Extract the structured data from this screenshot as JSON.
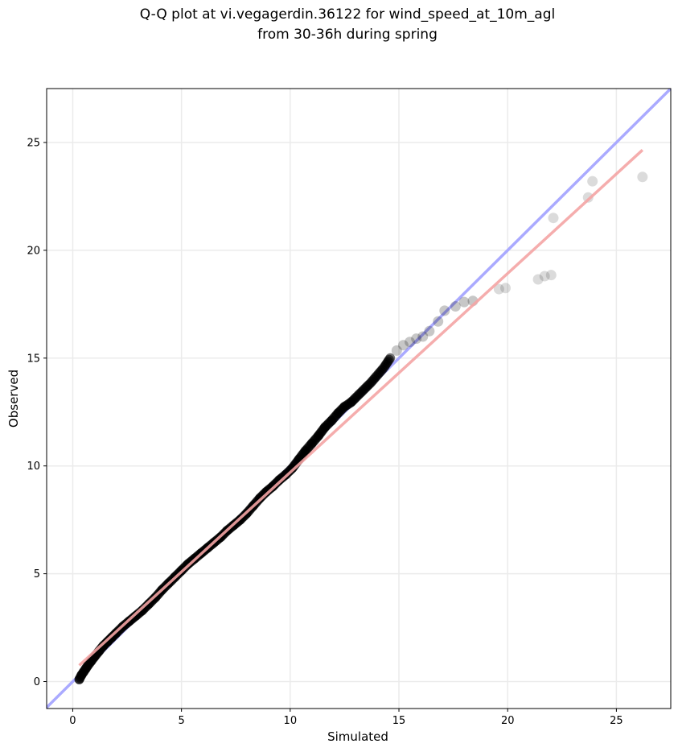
{
  "chart_data": {
    "type": "scatter",
    "title": [
      "Q-Q plot at vi.vegagerdin.36122 for wind_speed_at_10m_agl",
      "from 30-36h during spring"
    ],
    "xlabel": "Simulated",
    "ylabel": "Observed",
    "xlim": [
      -1.2,
      27.5
    ],
    "ylim": [
      -1.25,
      27.5
    ],
    "xticks": [
      0,
      5,
      10,
      15,
      20,
      25
    ],
    "yticks": [
      0,
      5,
      10,
      15,
      20,
      25
    ],
    "grid": true,
    "legend": "none",
    "colors": {
      "points": "#000000",
      "identity_line": "#aaaaff",
      "fit_line": "#f4a4a4",
      "grid": "#ebebeb"
    },
    "identity_line": {
      "slope": 1,
      "intercept": 0
    },
    "fit_line": {
      "x": [
        0.3,
        26.2
      ],
      "y": [
        0.75,
        24.65
      ]
    },
    "series": [
      {
        "x": [
          0.3,
          0.4,
          0.5,
          0.6,
          0.7,
          0.85,
          1.0,
          1.2,
          1.4,
          1.6,
          1.8,
          2.0,
          2.3,
          2.6,
          2.9,
          3.2,
          3.5,
          3.8,
          4.1,
          4.4,
          4.7,
          5.0,
          5.3,
          5.6,
          5.9,
          6.2,
          6.5,
          6.8,
          7.1,
          7.4,
          7.7,
          8.0,
          8.3,
          8.6,
          8.9,
          9.2,
          9.5,
          9.8,
          10.1,
          10.4,
          10.7,
          11.0,
          11.3,
          11.6,
          11.9,
          12.2,
          12.5,
          12.8,
          13.1,
          13.4,
          13.7,
          14.0,
          14.3,
          14.6,
          14.9,
          15.2,
          15.5,
          15.8,
          16.1,
          16.4,
          16.8,
          17.1,
          17.6,
          18.0,
          18.4,
          19.6,
          19.9,
          21.4,
          21.7,
          22.0,
          22.1,
          23.7,
          23.9,
          26.2
        ],
        "y": [
          0.1,
          0.3,
          0.45,
          0.6,
          0.75,
          0.95,
          1.15,
          1.4,
          1.65,
          1.85,
          2.05,
          2.25,
          2.55,
          2.8,
          3.05,
          3.3,
          3.6,
          3.9,
          4.25,
          4.55,
          4.85,
          5.15,
          5.45,
          5.7,
          5.95,
          6.2,
          6.45,
          6.7,
          7.0,
          7.25,
          7.5,
          7.8,
          8.15,
          8.5,
          8.8,
          9.05,
          9.35,
          9.6,
          9.9,
          10.3,
          10.7,
          11.05,
          11.4,
          11.8,
          12.1,
          12.45,
          12.75,
          12.95,
          13.25,
          13.55,
          13.85,
          14.2,
          14.55,
          15.0,
          15.35,
          15.6,
          15.75,
          15.9,
          16.0,
          16.25,
          16.7,
          17.2,
          17.4,
          17.6,
          17.65,
          18.2,
          18.25,
          18.65,
          18.8,
          18.85,
          21.5,
          22.45,
          23.2,
          23.4
        ]
      }
    ]
  }
}
